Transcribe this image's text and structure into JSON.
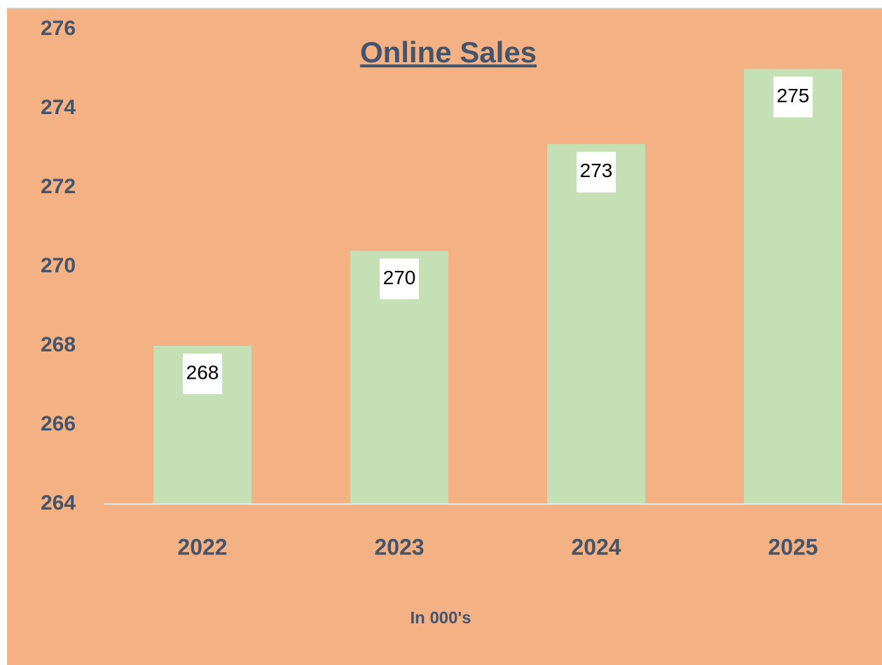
{
  "chart_data": {
    "type": "bar",
    "title": "Online Sales",
    "x_label": "In 000's",
    "categories": [
      "2022",
      "2023",
      "2024",
      "2025"
    ],
    "values": [
      268,
      270.4,
      273.1,
      275
    ],
    "value_labels": [
      "268",
      "270",
      "273",
      "275"
    ],
    "color": "#c5e0b4",
    "ylim": [
      264,
      276
    ],
    "yticks": [
      264,
      266,
      268,
      270,
      272,
      274,
      276
    ],
    "grid": false
  }
}
